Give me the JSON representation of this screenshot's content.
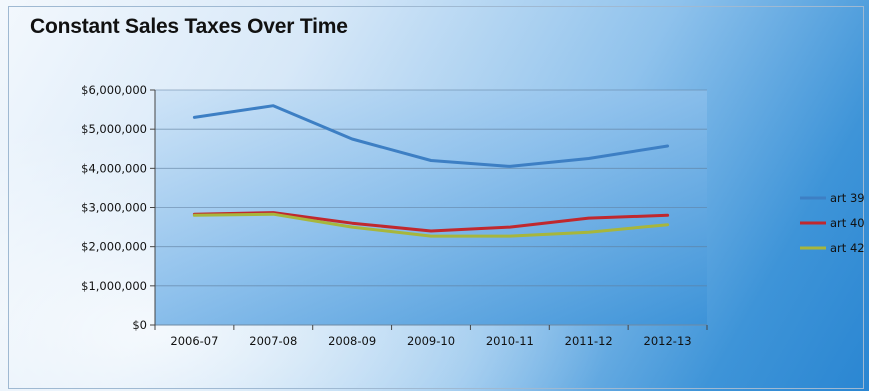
{
  "chart_data": {
    "type": "line",
    "title": "Constant Sales Taxes Over Time",
    "xlabel": "",
    "ylabel": "",
    "categories": [
      "2006-07",
      "2007-08",
      "2008-09",
      "2009-10",
      "2010-11",
      "2011-12",
      "2012-13"
    ],
    "ylim": [
      0,
      6000000
    ],
    "yticks": [
      0,
      1000000,
      2000000,
      3000000,
      4000000,
      5000000,
      6000000
    ],
    "ytick_labels": [
      "$0",
      "$1,000,000",
      "$2,000,000",
      "$3,000,000",
      "$4,000,000",
      "$5,000,000",
      "$6,000,000"
    ],
    "grid": true,
    "legend_position": "right",
    "series": [
      {
        "name": "art 39",
        "color": "#3d7fc4",
        "values": [
          5300000,
          5600000,
          4750000,
          4200000,
          4050000,
          4250000,
          4570000
        ]
      },
      {
        "name": "art 40",
        "color": "#c0282e",
        "values": [
          2830000,
          2870000,
          2600000,
          2400000,
          2500000,
          2730000,
          2800000
        ]
      },
      {
        "name": "art 42",
        "color": "#a7b63c",
        "values": [
          2800000,
          2830000,
          2500000,
          2270000,
          2270000,
          2370000,
          2560000
        ]
      }
    ]
  }
}
